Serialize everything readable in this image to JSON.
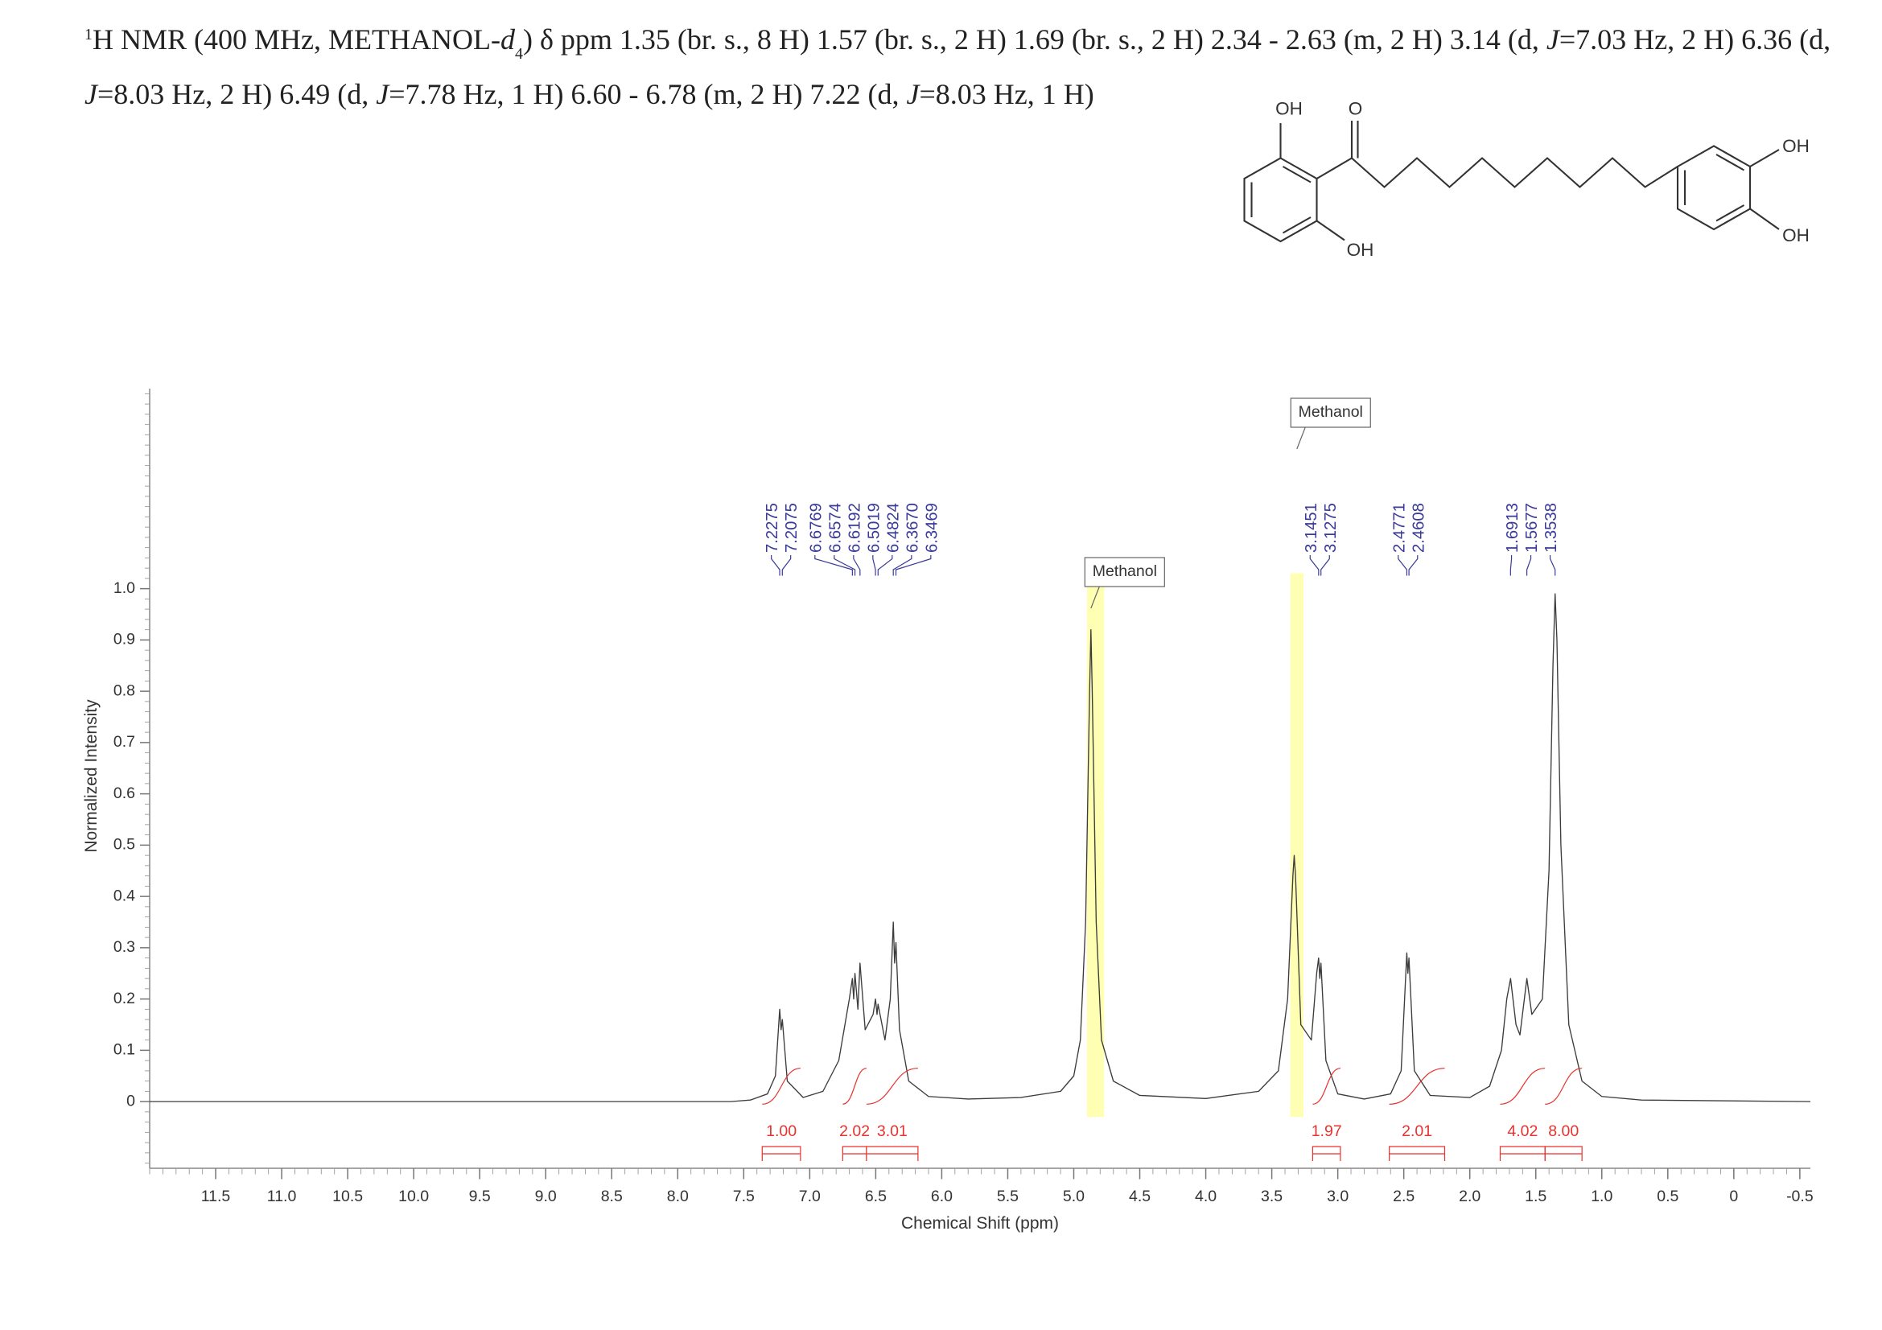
{
  "caption": [
    "1",
    "H NMR (400 MHz, METHANOL-",
    "d",
    "4",
    ") δ ppm 1.35 (br. s., 8 H) 1.57 (br. s., 2 H) 1.69 (br. s., 2 H) 2.34 - 2.63 (m, 2 H) 3.14 (d, ",
    "J",
    "=7.03 Hz, 2 H) 6.36 (d, ",
    "J",
    "=8.03 Hz, 2 H) 6.49 (d, ",
    "J",
    "=7.78 Hz, 1 H) 6.60 - 6.78 (m, 2 H) 7.22 (d, ",
    "J",
    "=8.03 Hz, 1 H)"
  ],
  "structure": {
    "labels": [
      "OH",
      "O",
      "OH",
      "OH",
      "OH"
    ]
  },
  "chart_data": {
    "type": "line",
    "xlabel": "Chemical Shift (ppm)",
    "ylabel": "Normalized Intensity",
    "color": "#3c3c3c",
    "xlim": [
      12.0,
      -0.58
    ],
    "ylim": [
      -0.13,
      1.39
    ],
    "xticks": [
      11.5,
      {
        "value": 11,
        "label": "11.0"
      },
      10.5,
      {
        "value": 10,
        "label": "10.0"
      },
      9.5,
      {
        "value": 9,
        "label": "9.0"
      },
      8.5,
      {
        "value": 8,
        "label": "8.0"
      },
      7.5,
      {
        "value": 7,
        "label": "7.0"
      },
      6.5,
      {
        "value": 6,
        "label": "6.0"
      },
      5.5,
      {
        "value": 5,
        "label": "5.0"
      },
      4.5,
      {
        "value": 4,
        "label": "4.0"
      },
      3.5,
      {
        "value": 3,
        "label": "3.0"
      },
      2.5,
      {
        "value": 2,
        "label": "2.0"
      },
      1.5,
      {
        "value": 1,
        "label": "1.0"
      },
      0.5,
      0,
      -0.5
    ],
    "yticks": [
      0,
      0.1,
      0.2,
      0.3,
      0.4,
      0.5,
      0.6,
      0.7,
      0.8,
      0.9,
      {
        "value": 1,
        "label": "1.0"
      }
    ],
    "x": [
      12.0,
      7.6,
      7.45,
      7.32,
      7.26,
      7.2275,
      7.217,
      7.2075,
      7.17,
      7.05,
      6.9,
      6.78,
      6.7,
      6.6769,
      6.667,
      6.6574,
      6.635,
      6.6192,
      6.58,
      6.52,
      6.5019,
      6.49,
      6.4824,
      6.43,
      6.39,
      6.367,
      6.357,
      6.3469,
      6.32,
      6.25,
      6.1,
      5.8,
      5.4,
      5.1,
      5.0,
      4.95,
      4.91,
      4.88,
      4.87,
      4.86,
      4.83,
      4.79,
      4.7,
      4.5,
      4.0,
      3.6,
      3.45,
      3.38,
      3.34,
      3.33,
      3.32,
      3.28,
      3.2,
      3.16,
      3.1451,
      3.136,
      3.1275,
      3.09,
      3.0,
      2.8,
      2.6,
      2.52,
      2.4771,
      2.469,
      2.4608,
      2.42,
      2.3,
      2.0,
      1.85,
      1.76,
      1.72,
      1.6913,
      1.65,
      1.62,
      1.5677,
      1.53,
      1.45,
      1.4,
      1.37,
      1.3538,
      1.34,
      1.31,
      1.25,
      1.15,
      1.0,
      0.7,
      -0.58
    ],
    "values": [
      0,
      0,
      0.003,
      0.015,
      0.05,
      0.18,
      0.14,
      0.16,
      0.04,
      0.008,
      0.02,
      0.08,
      0.2,
      0.24,
      0.2,
      0.25,
      0.18,
      0.27,
      0.14,
      0.17,
      0.2,
      0.17,
      0.19,
      0.12,
      0.2,
      0.35,
      0.27,
      0.31,
      0.14,
      0.04,
      0.01,
      0.005,
      0.008,
      0.02,
      0.05,
      0.12,
      0.35,
      0.8,
      0.92,
      0.8,
      0.35,
      0.12,
      0.04,
      0.012,
      0.006,
      0.02,
      0.06,
      0.2,
      0.44,
      0.48,
      0.44,
      0.15,
      0.12,
      0.25,
      0.28,
      0.24,
      0.27,
      0.08,
      0.015,
      0.005,
      0.015,
      0.06,
      0.29,
      0.25,
      0.28,
      0.06,
      0.012,
      0.008,
      0.03,
      0.1,
      0.2,
      0.24,
      0.15,
      0.13,
      0.24,
      0.17,
      0.2,
      0.45,
      0.85,
      0.99,
      0.9,
      0.5,
      0.15,
      0.04,
      0.01,
      0.003,
      0
    ],
    "peak_labels": [
      7.2275,
      7.2075,
      6.6769,
      6.6574,
      6.6192,
      6.5019,
      6.4824,
      {
        "value": 6.367,
        "label": "6.3670"
      },
      6.3469,
      3.1451,
      3.1275,
      2.4771,
      2.4608,
      1.6913,
      1.5677,
      1.3538
    ],
    "peak_label_color": "#3a3a9a",
    "integrals": [
      {
        "label": "1.00",
        "from": 7.36,
        "to": 7.07
      },
      {
        "label": "2.02",
        "from": 6.75,
        "to": 6.57
      },
      {
        "label": "3.01",
        "from": 6.57,
        "to": 6.18
      },
      {
        "label": "1.97",
        "from": 3.19,
        "to": 2.98
      },
      {
        "label": "2.01",
        "from": 2.61,
        "to": 2.19
      },
      {
        "label": "4.02",
        "from": 1.77,
        "to": 1.43
      },
      {
        "label": "8.00",
        "from": 1.43,
        "to": 1.15
      }
    ],
    "integral_color": "#e8322e",
    "annotations": [
      {
        "text": "Methanol",
        "x": 4.87
      },
      {
        "text": "Methanol",
        "x": 3.31
      }
    ],
    "highlights": [
      {
        "from": 4.9,
        "to": 4.77
      },
      {
        "from": 3.36,
        "to": 3.26
      }
    ],
    "highlight_color": "#ffff99"
  }
}
